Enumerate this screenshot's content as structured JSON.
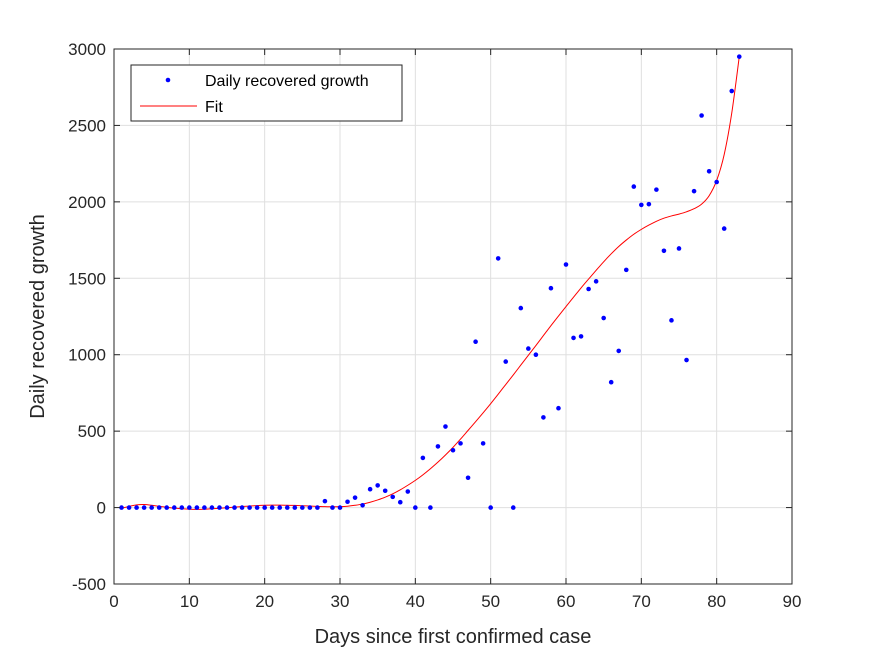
{
  "chart_data": {
    "type": "scatter",
    "xlabel": "Days since first confirmed case",
    "ylabel": "Daily recovered growth",
    "xlim": [
      0,
      90
    ],
    "ylim": [
      -500,
      3000
    ],
    "xticks": [
      "0",
      "10",
      "20",
      "30",
      "40",
      "50",
      "60",
      "70",
      "80",
      "90"
    ],
    "yticks": [
      "-500",
      "0",
      "500",
      "1000",
      "1500",
      "2000",
      "2500",
      "3000"
    ],
    "grid": true,
    "legend_position": "top-left",
    "series": [
      {
        "name": "Daily recovered growth",
        "style": "points",
        "color": "#0000FF",
        "points": [
          [
            1,
            0
          ],
          [
            2,
            0
          ],
          [
            3,
            0
          ],
          [
            4,
            0
          ],
          [
            5,
            0
          ],
          [
            6,
            0
          ],
          [
            7,
            0
          ],
          [
            8,
            0
          ],
          [
            9,
            0
          ],
          [
            10,
            0
          ],
          [
            11,
            0
          ],
          [
            12,
            0
          ],
          [
            13,
            0
          ],
          [
            14,
            0
          ],
          [
            15,
            0
          ],
          [
            16,
            0
          ],
          [
            17,
            0
          ],
          [
            18,
            0
          ],
          [
            19,
            0
          ],
          [
            20,
            0
          ],
          [
            21,
            0
          ],
          [
            22,
            0
          ],
          [
            23,
            0
          ],
          [
            24,
            0
          ],
          [
            25,
            0
          ],
          [
            26,
            0
          ],
          [
            27,
            0
          ],
          [
            28,
            42
          ],
          [
            29,
            0
          ],
          [
            30,
            0
          ],
          [
            31,
            38
          ],
          [
            32,
            65
          ],
          [
            33,
            15
          ],
          [
            34,
            120
          ],
          [
            35,
            145
          ],
          [
            36,
            110
          ],
          [
            37,
            70
          ],
          [
            38,
            35
          ],
          [
            39,
            105
          ],
          [
            40,
            0
          ],
          [
            41,
            325
          ],
          [
            42,
            0
          ],
          [
            43,
            400
          ],
          [
            44,
            530
          ],
          [
            45,
            375
          ],
          [
            46,
            420
          ],
          [
            47,
            195
          ],
          [
            48,
            1085
          ],
          [
            49,
            420
          ],
          [
            50,
            0
          ],
          [
            51,
            1630
          ],
          [
            52,
            955
          ],
          [
            53,
            0
          ],
          [
            54,
            1305
          ],
          [
            55,
            1040
          ],
          [
            56,
            1000
          ],
          [
            57,
            590
          ],
          [
            58,
            1435
          ],
          [
            59,
            650
          ],
          [
            60,
            1590
          ],
          [
            61,
            1110
          ],
          [
            62,
            1120
          ],
          [
            63,
            1430
          ],
          [
            64,
            1480
          ],
          [
            65,
            1240
          ],
          [
            66,
            820
          ],
          [
            67,
            1025
          ],
          [
            68,
            1555
          ],
          [
            69,
            2100
          ],
          [
            70,
            1980
          ],
          [
            71,
            1985
          ],
          [
            72,
            2080
          ],
          [
            73,
            1680
          ],
          [
            74,
            1225
          ],
          [
            75,
            1695
          ],
          [
            76,
            965
          ],
          [
            77,
            2070
          ],
          [
            78,
            2565
          ],
          [
            79,
            2200
          ],
          [
            80,
            2130
          ],
          [
            81,
            1825
          ],
          [
            82,
            2725
          ],
          [
            83,
            2950
          ]
        ]
      },
      {
        "name": "Fit",
        "style": "line",
        "color": "#FF0000",
        "points": [
          [
            1,
            -5
          ],
          [
            2,
            8
          ],
          [
            3,
            18
          ],
          [
            4,
            20
          ],
          [
            5,
            15
          ],
          [
            6,
            8
          ],
          [
            7,
            2
          ],
          [
            8,
            -4
          ],
          [
            9,
            -8
          ],
          [
            10,
            -11
          ],
          [
            11,
            -12
          ],
          [
            12,
            -11
          ],
          [
            13,
            -8
          ],
          [
            14,
            -5
          ],
          [
            15,
            -1
          ],
          [
            16,
            3
          ],
          [
            17,
            7
          ],
          [
            18,
            10
          ],
          [
            19,
            13
          ],
          [
            20,
            15
          ],
          [
            21,
            16
          ],
          [
            22,
            16
          ],
          [
            23,
            15
          ],
          [
            24,
            14
          ],
          [
            25,
            12
          ],
          [
            26,
            10
          ],
          [
            27,
            8
          ],
          [
            28,
            6
          ],
          [
            29,
            5
          ],
          [
            30,
            6
          ],
          [
            31,
            9
          ],
          [
            32,
            15
          ],
          [
            33,
            23
          ],
          [
            34,
            35
          ],
          [
            35,
            50
          ],
          [
            36,
            68
          ],
          [
            37,
            90
          ],
          [
            38,
            116
          ],
          [
            39,
            146
          ],
          [
            40,
            178
          ],
          [
            41,
            214
          ],
          [
            42,
            254
          ],
          [
            43,
            297
          ],
          [
            44,
            344
          ],
          [
            45,
            394
          ],
          [
            46,
            448
          ],
          [
            47,
            505
          ],
          [
            48,
            562
          ],
          [
            49,
            620
          ],
          [
            50,
            680
          ],
          [
            51,
            742
          ],
          [
            52,
            805
          ],
          [
            53,
            868
          ],
          [
            54,
            932
          ],
          [
            55,
            996
          ],
          [
            56,
            1060
          ],
          [
            57,
            1125
          ],
          [
            58,
            1190
          ],
          [
            59,
            1253
          ],
          [
            60,
            1315
          ],
          [
            61,
            1376
          ],
          [
            62,
            1437
          ],
          [
            63,
            1495
          ],
          [
            64,
            1552
          ],
          [
            65,
            1608
          ],
          [
            66,
            1660
          ],
          [
            67,
            1708
          ],
          [
            68,
            1750
          ],
          [
            69,
            1788
          ],
          [
            70,
            1820
          ],
          [
            71,
            1848
          ],
          [
            72,
            1873
          ],
          [
            73,
            1893
          ],
          [
            74,
            1908
          ],
          [
            75,
            1920
          ],
          [
            76,
            1935
          ],
          [
            77,
            1955
          ],
          [
            78,
            1985
          ],
          [
            79,
            2040
          ],
          [
            80,
            2140
          ],
          [
            81,
            2310
          ],
          [
            82,
            2580
          ],
          [
            83,
            2950
          ]
        ]
      }
    ]
  }
}
